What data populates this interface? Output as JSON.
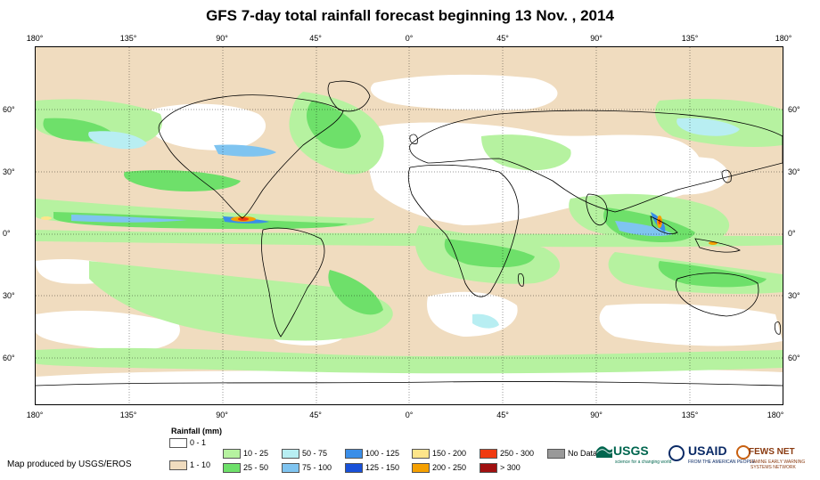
{
  "title": "GFS 7-day total rainfall forecast beginning 13 Nov. , 2014",
  "longitude_labels": [
    "180°",
    "135°",
    "90°",
    "45°",
    "0°",
    "45°",
    "90°",
    "135°",
    "180°"
  ],
  "latitude_labels": [
    "60°",
    "30°",
    "0°",
    "30°",
    "60°"
  ],
  "legend": {
    "title": "Rainfall (mm)",
    "items": [
      {
        "label": "0 - 1",
        "color": "#ffffff"
      },
      {
        "label": "1 - 10",
        "color": "#f0dcbf"
      },
      {
        "label": "10 - 25",
        "color": "#b6f2a0"
      },
      {
        "label": "25 - 50",
        "color": "#6ee06a"
      },
      {
        "label": "50 - 75",
        "color": "#b8eef2"
      },
      {
        "label": "75 - 100",
        "color": "#7fc4f0"
      },
      {
        "label": "100 - 125",
        "color": "#3a8ee8"
      },
      {
        "label": "125 - 150",
        "color": "#1850d8"
      },
      {
        "label": "150 - 200",
        "color": "#fde58a"
      },
      {
        "label": "200 - 250",
        "color": "#f5a000"
      },
      {
        "label": "250 - 300",
        "color": "#f03a10"
      },
      {
        "label": "> 300",
        "color": "#a01010"
      },
      {
        "label": "No Data",
        "color": "#999999"
      }
    ]
  },
  "credit": "Map produced by USGS/EROS",
  "logos": {
    "usgs": "USGS",
    "usgs_tagline": "science for a changing world",
    "usaid": "USAID",
    "usaid_tagline": "FROM THE AMERICAN PEOPLE",
    "fews": "FEWS NET",
    "fews_tagline": "FAMINE EARLY WARNING SYSTEMS NETWORK"
  }
}
